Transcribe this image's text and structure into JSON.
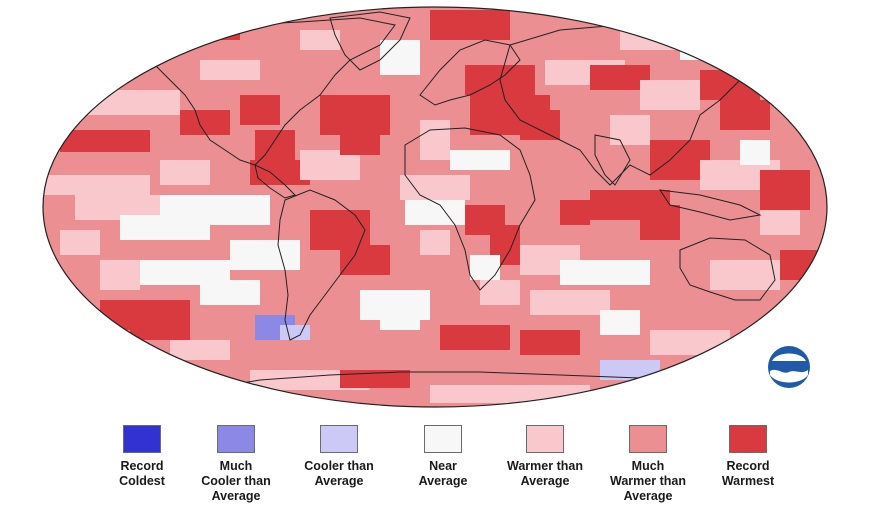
{
  "legend": [
    {
      "label": "Record\nColdest",
      "color": "#3232d2"
    },
    {
      "label": "Much\nCooler than\nAverage",
      "color": "#8c88e6"
    },
    {
      "label": "Cooler than\nAverage",
      "color": "#cdc9f7"
    },
    {
      "label": "Near\nAverage",
      "color": "#f7f7f7"
    },
    {
      "label": "Warmer than\nAverage",
      "color": "#f9c8cd"
    },
    {
      "label": "Much\nWarmer than\nAverage",
      "color": "#ec8f93"
    },
    {
      "label": "Record\nWarmest",
      "color": "#d83a3f"
    }
  ],
  "map": {
    "ocean_background": "#ec8f93",
    "land_outline": "#222222",
    "logo": "noaa-logo"
  }
}
